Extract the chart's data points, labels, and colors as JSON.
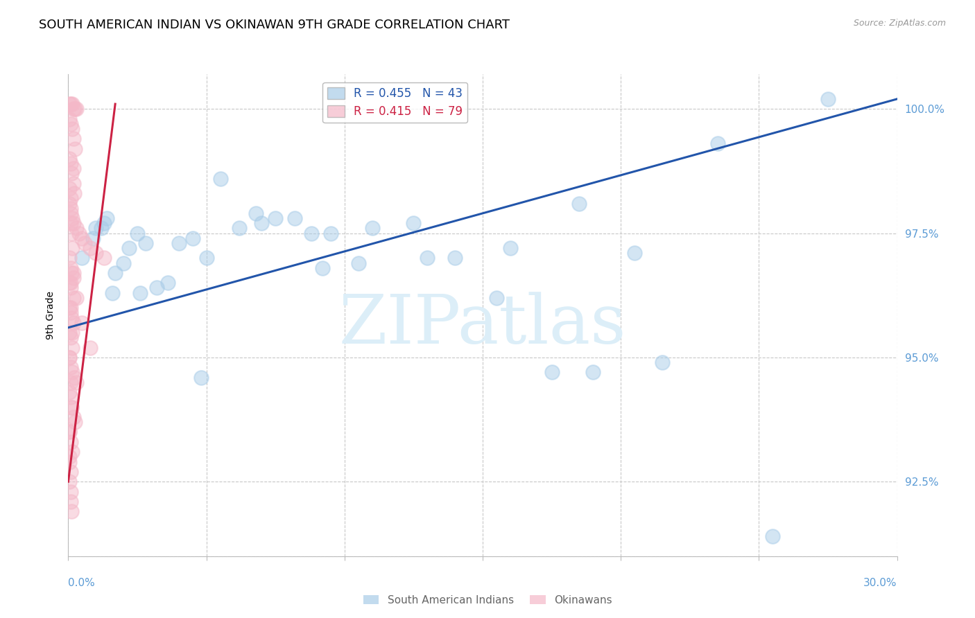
{
  "title": "SOUTH AMERICAN INDIAN VS OKINAWAN 9TH GRADE CORRELATION CHART",
  "source": "Source: ZipAtlas.com",
  "ylabel": "9th Grade",
  "xmin": 0.0,
  "xmax": 30.0,
  "ymin": 91.0,
  "ymax": 100.7,
  "y_ticks": [
    91.0,
    92.5,
    95.0,
    97.5,
    100.0
  ],
  "legend_blue_label": "R = 0.455   N = 43",
  "legend_pink_label": "R = 0.415   N = 79",
  "watermark": "ZIPatlas",
  "blue_color": "#a8cce8",
  "pink_color": "#f4b8c8",
  "blue_line_color": "#2255aa",
  "pink_line_color": "#cc2244",
  "tick_label_color": "#5b9bd5",
  "watermark_color": "#dceef8",
  "title_fontsize": 13,
  "axis_label_fontsize": 10,
  "tick_fontsize": 11,
  "blue_scatter_x": [
    0.5,
    0.9,
    1.3,
    1.7,
    2.2,
    2.8,
    3.6,
    4.5,
    5.5,
    6.8,
    7.5,
    8.2,
    9.5,
    11.0,
    12.5,
    14.0,
    16.0,
    18.5,
    20.5,
    23.5,
    27.5,
    1.0,
    1.4,
    2.0,
    2.5,
    3.2,
    4.0,
    5.0,
    6.2,
    7.0,
    8.8,
    10.5,
    13.0,
    15.5,
    17.5,
    21.5,
    25.5,
    1.2,
    1.6,
    2.6,
    4.8,
    9.2,
    19.0
  ],
  "blue_scatter_y": [
    97.0,
    97.4,
    97.7,
    96.7,
    97.2,
    97.3,
    96.5,
    97.4,
    98.6,
    97.9,
    97.8,
    97.8,
    97.5,
    97.6,
    97.7,
    97.0,
    97.2,
    98.1,
    97.1,
    99.3,
    100.2,
    97.6,
    97.8,
    96.9,
    97.5,
    96.4,
    97.3,
    97.0,
    97.6,
    97.7,
    97.5,
    96.9,
    97.0,
    96.2,
    94.7,
    94.9,
    91.4,
    97.6,
    96.3,
    96.3,
    94.6,
    96.8,
    94.7
  ],
  "pink_scatter_x": [
    0.05,
    0.1,
    0.15,
    0.2,
    0.25,
    0.3,
    0.05,
    0.1,
    0.15,
    0.2,
    0.25,
    0.05,
    0.08,
    0.12,
    0.18,
    0.22,
    0.05,
    0.1,
    0.15,
    0.2,
    0.3,
    0.4,
    0.5,
    0.6,
    0.8,
    1.0,
    1.3,
    0.08,
    0.12,
    0.18,
    0.05,
    0.1,
    0.2,
    0.05,
    0.08,
    0.12,
    0.18,
    0.05,
    0.1,
    0.15,
    0.05,
    0.08,
    0.15,
    0.22,
    0.3,
    0.05,
    0.08,
    0.12,
    0.18,
    0.25,
    0.05,
    0.08,
    0.15,
    0.05,
    0.1,
    0.05,
    0.08,
    0.1,
    0.12,
    0.2,
    0.05,
    0.08,
    0.12,
    0.05,
    0.08,
    0.1,
    0.15,
    0.05,
    0.08,
    0.12,
    0.05,
    0.05,
    0.08,
    0.1,
    0.15,
    0.2,
    0.3,
    0.5,
    0.8
  ],
  "pink_scatter_y": [
    100.1,
    100.1,
    100.1,
    100.0,
    100.0,
    100.0,
    99.8,
    99.7,
    99.6,
    99.4,
    99.2,
    99.0,
    98.9,
    98.7,
    98.5,
    98.3,
    98.1,
    97.9,
    97.8,
    97.7,
    97.6,
    97.5,
    97.4,
    97.3,
    97.2,
    97.1,
    97.0,
    96.8,
    96.7,
    96.6,
    96.5,
    96.4,
    96.2,
    96.0,
    95.9,
    95.8,
    95.7,
    95.5,
    95.4,
    95.2,
    95.0,
    94.8,
    94.7,
    94.6,
    94.5,
    94.3,
    94.2,
    94.0,
    93.8,
    93.7,
    93.5,
    93.3,
    93.1,
    92.9,
    92.7,
    92.5,
    92.3,
    92.1,
    91.9,
    98.8,
    98.4,
    98.0,
    97.5,
    97.0,
    96.5,
    96.0,
    95.5,
    95.0,
    94.5,
    94.0,
    93.5,
    93.0,
    98.2,
    97.7,
    97.2,
    96.7,
    96.2,
    95.7,
    95.2
  ],
  "blue_trend_x": [
    0.0,
    30.0
  ],
  "blue_trend_y": [
    95.6,
    100.2
  ],
  "pink_trend_x": [
    0.0,
    1.7
  ],
  "pink_trend_y": [
    92.5,
    100.1
  ]
}
